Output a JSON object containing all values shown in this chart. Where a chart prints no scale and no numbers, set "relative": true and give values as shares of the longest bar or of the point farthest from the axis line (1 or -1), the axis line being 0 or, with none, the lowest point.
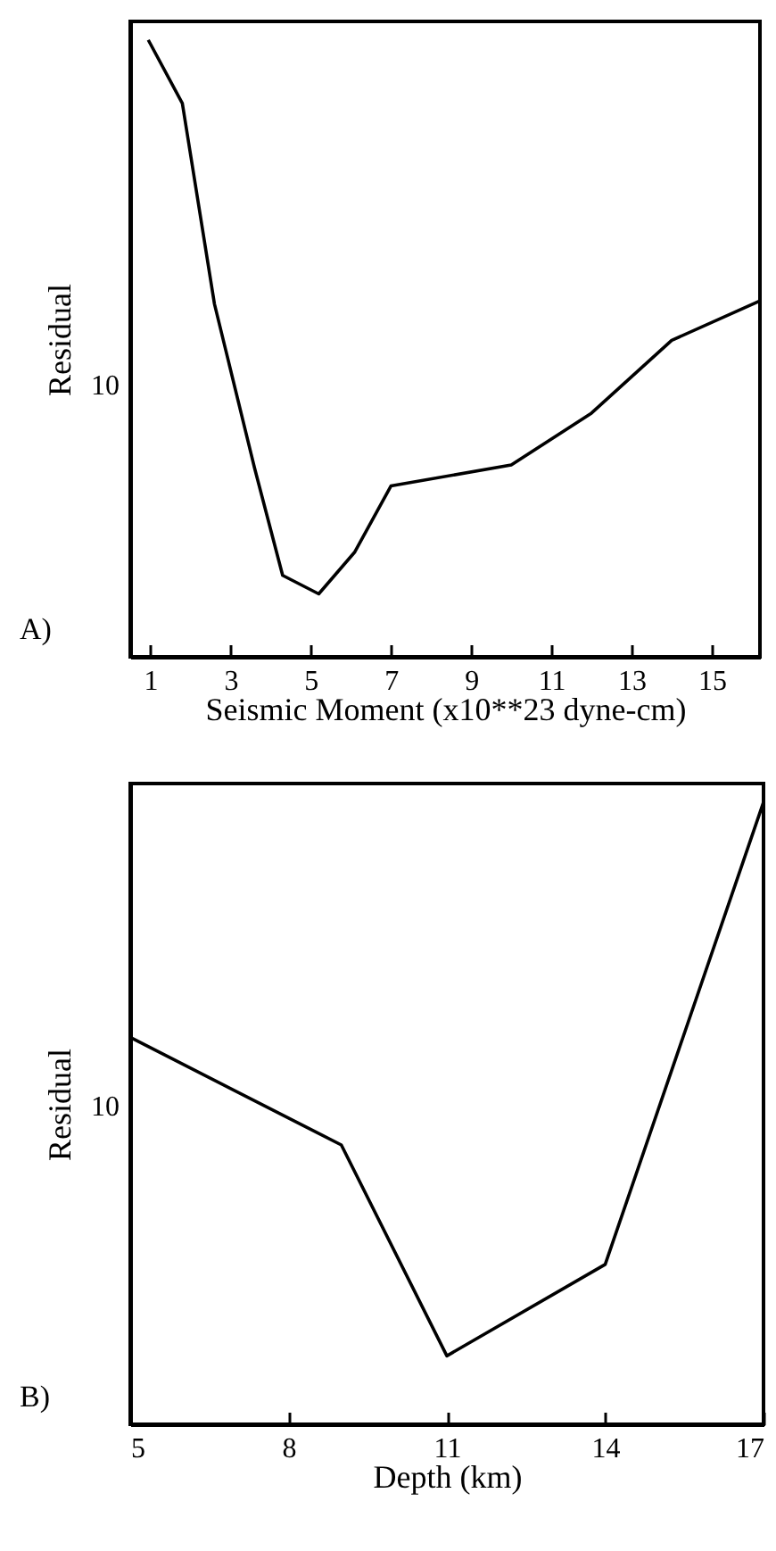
{
  "chart_data": [
    {
      "type": "line",
      "xlabel": "Seismic Moment (x10**23 dyne-cm)",
      "ylabel": "Residual",
      "relative": true,
      "annotations": [
        "10",
        "A)"
      ],
      "x": [
        0.95,
        1.8,
        2.6,
        3.6,
        4.3,
        5.2,
        6.1,
        7,
        10,
        12,
        14,
        16.2
      ],
      "series": [
        {
          "color": "#000000",
          "values": [
            1,
            0.897,
            0.572,
            0.306,
            0.132,
            0.102,
            0.17,
            0.277,
            0.311,
            0.395,
            0.513,
            0.577
          ]
        }
      ],
      "xlim": [
        0.5,
        16.2
      ],
      "xticks": [
        1,
        3,
        5,
        7,
        9,
        11,
        13,
        15
      ]
    },
    {
      "type": "line",
      "xlabel": "Depth (km)",
      "ylabel": "Residual",
      "relative": true,
      "annotations": [
        "10",
        "B)"
      ],
      "x": [
        5,
        9,
        11,
        14,
        17
      ],
      "series": [
        {
          "color": "#000000",
          "values": [
            0.622,
            0.449,
            0.11,
            0.257,
            1
          ]
        }
      ],
      "xlim": [
        5,
        17
      ],
      "xticks": [
        5,
        8,
        11,
        14,
        17
      ]
    }
  ]
}
